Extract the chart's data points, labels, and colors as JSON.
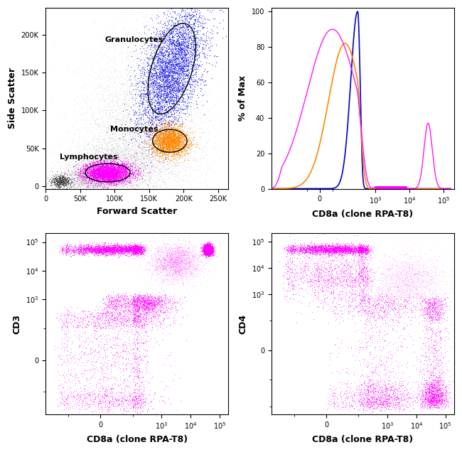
{
  "fig_width": 6.5,
  "fig_height": 6.36,
  "dpi": 100,
  "scatter_dot_color": "#aaaaaa",
  "granulocyte_color": "#2222ee",
  "monocyte_color": "#ff8800",
  "lymphocyte_color": "#ff00ff",
  "magenta_color": "#ff00ff",
  "blue_color": "#0000cc",
  "orange_color": "#ff8800",
  "panel_labels": [
    "Forward Scatter",
    "CD8a (clone RPA-T8)",
    "CD8a (clone RPA-T8)",
    "CD8a (clone RPA-T8)"
  ],
  "panel_ylabels": [
    "Side Scatter",
    "% of Max",
    "CD3",
    "CD4"
  ],
  "fsc_xticks": [
    0,
    50000,
    100000,
    150000,
    200000,
    250000
  ],
  "fsc_yticks": [
    0,
    50000,
    100000,
    150000,
    200000
  ],
  "fsc_xticklabels": [
    "0",
    "50K",
    "100K",
    "150K",
    "200K",
    "250K"
  ],
  "fsc_yticklabels": [
    "0",
    "50K",
    "100K",
    "150K",
    "200K"
  ],
  "hist_ylim": [
    0,
    100
  ],
  "hist_yticks": [
    0,
    20,
    40,
    60,
    80,
    100
  ],
  "random_seed": 42
}
